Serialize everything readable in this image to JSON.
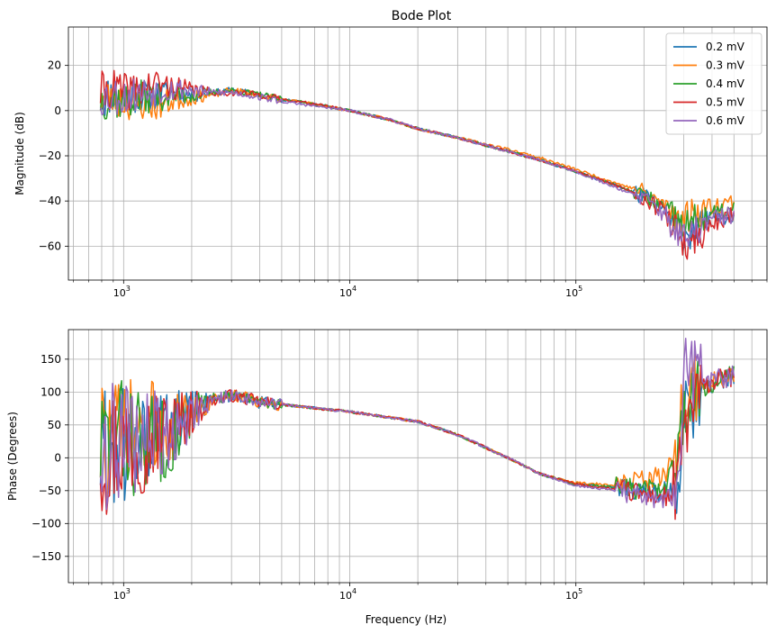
{
  "figure": {
    "title": "Bode Plot",
    "xlabel": "Frequency (Hz)"
  },
  "chart_data": [
    {
      "type": "line",
      "title": "Bode Plot",
      "ylabel": "Magnitude (dB)",
      "xscale": "log",
      "xlim": [
        570,
        700000
      ],
      "ylim": [
        -75,
        37
      ],
      "xticks": [
        1000,
        10000,
        100000
      ],
      "xtick_labels": [
        [
          "10",
          "3"
        ],
        [
          "10",
          "4"
        ],
        [
          "10",
          "5"
        ]
      ],
      "yticks": [
        -60,
        -40,
        -20,
        0,
        20
      ],
      "ytick_labels": [
        "−60",
        "−40",
        "−20",
        "0",
        "20"
      ],
      "grid": true,
      "legend": "top-right",
      "series": [
        {
          "name": "0.2 mV",
          "color": "#1f77b4",
          "seed": 11,
          "x": [
            800,
            900,
            1000,
            1200,
            1400,
            1700,
            2000,
            2500,
            3000,
            4000,
            5000,
            7000,
            10000,
            15000,
            20000,
            30000,
            50000,
            70000,
            100000,
            150000,
            200000,
            250000,
            300000,
            350000,
            400000,
            500000
          ],
          "y": [
            5,
            8,
            6,
            7,
            7,
            8,
            7,
            8,
            9,
            7,
            5,
            3,
            0,
            -4,
            -8,
            -12,
            -18,
            -22,
            -27,
            -33,
            -38,
            -45,
            -55,
            -52,
            -48,
            -45
          ]
        },
        {
          "name": "0.3 mV",
          "color": "#ff7f0e",
          "seed": 23,
          "x": [
            800,
            900,
            1000,
            1200,
            1400,
            1700,
            2000,
            2500,
            3000,
            4000,
            5000,
            7000,
            10000,
            15000,
            20000,
            30000,
            50000,
            70000,
            100000,
            150000,
            200000,
            250000,
            300000,
            350000,
            400000,
            500000
          ],
          "y": [
            5,
            6,
            4,
            3,
            2,
            5,
            6,
            7,
            9,
            7,
            5,
            3,
            0,
            -4,
            -8,
            -12,
            -17,
            -21,
            -26,
            -32,
            -36,
            -42,
            -48,
            -44,
            -42,
            -40
          ]
        },
        {
          "name": "0.4 mV",
          "color": "#2ca02c",
          "seed": 37,
          "x": [
            800,
            900,
            1000,
            1200,
            1400,
            1700,
            2000,
            2500,
            3000,
            4000,
            5000,
            7000,
            10000,
            15000,
            20000,
            30000,
            50000,
            70000,
            100000,
            150000,
            200000,
            250000,
            300000,
            350000,
            400000,
            500000
          ],
          "y": [
            5,
            5,
            4,
            6,
            6,
            7,
            7,
            8,
            9,
            7,
            5,
            3,
            0,
            -4,
            -8,
            -12,
            -18,
            -22,
            -27,
            -33,
            -38,
            -44,
            -52,
            -48,
            -46,
            -44
          ]
        },
        {
          "name": "0.5 mV",
          "color": "#d62728",
          "seed": 41,
          "x": [
            800,
            900,
            1000,
            1200,
            1400,
            1700,
            2000,
            2500,
            3000,
            4000,
            5000,
            7000,
            10000,
            15000,
            20000,
            30000,
            50000,
            70000,
            100000,
            150000,
            200000,
            250000,
            300000,
            350000,
            400000,
            500000
          ],
          "y": [
            8,
            10,
            8,
            10,
            12,
            10,
            9,
            8,
            8,
            7,
            5,
            3,
            0,
            -4,
            -8,
            -12,
            -18,
            -22,
            -27,
            -33,
            -38,
            -46,
            -60,
            -55,
            -50,
            -46
          ]
        },
        {
          "name": "0.6 mV",
          "color": "#9467bd",
          "seed": 53,
          "x": [
            800,
            900,
            1000,
            1200,
            1400,
            1700,
            2000,
            2500,
            3000,
            4000,
            5000,
            7000,
            10000,
            15000,
            20000,
            30000,
            50000,
            70000,
            100000,
            150000,
            200000,
            250000,
            300000,
            350000,
            400000,
            500000
          ],
          "y": [
            6,
            7,
            6,
            8,
            9,
            10,
            9,
            8,
            8,
            6,
            4,
            2,
            0,
            -4,
            -8,
            -12,
            -18,
            -22,
            -27,
            -34,
            -39,
            -46,
            -58,
            -52,
            -48,
            -46
          ]
        }
      ]
    },
    {
      "type": "line",
      "ylabel": "Phase (Degrees)",
      "xscale": "log",
      "xlim": [
        570,
        700000
      ],
      "ylim": [
        -190,
        195
      ],
      "xticks": [
        1000,
        10000,
        100000
      ],
      "xtick_labels": [
        [
          "10",
          "3"
        ],
        [
          "10",
          "4"
        ],
        [
          "10",
          "5"
        ]
      ],
      "yticks": [
        -150,
        -100,
        -50,
        0,
        50,
        100,
        150
      ],
      "ytick_labels": [
        "−150",
        "−100",
        "−50",
        "0",
        "50",
        "100",
        "150"
      ],
      "grid": true,
      "series": [
        {
          "name": "0.2 mV",
          "color": "#1f77b4",
          "seed": 61,
          "x": [
            800,
            1000,
            1300,
            1700,
            2000,
            2500,
            3000,
            4000,
            6000,
            10000,
            20000,
            30000,
            50000,
            70000,
            100000,
            150000,
            200000,
            250000,
            280000,
            300000,
            350000,
            400000,
            500000
          ],
          "y": [
            10,
            20,
            30,
            50,
            70,
            90,
            95,
            85,
            78,
            70,
            55,
            35,
            0,
            -25,
            -40,
            -45,
            -50,
            -50,
            -40,
            60,
            100,
            115,
            125
          ]
        },
        {
          "name": "0.3 mV",
          "color": "#ff7f0e",
          "seed": 73,
          "x": [
            800,
            1000,
            1300,
            1700,
            2000,
            2500,
            3000,
            4000,
            6000,
            10000,
            20000,
            30000,
            50000,
            70000,
            100000,
            150000,
            200000,
            250000,
            280000,
            300000,
            350000,
            400000,
            500000
          ],
          "y": [
            20,
            30,
            40,
            50,
            70,
            88,
            95,
            85,
            78,
            70,
            55,
            35,
            0,
            -25,
            -38,
            -42,
            -35,
            -25,
            20,
            90,
            110,
            118,
            125
          ]
        },
        {
          "name": "0.4 mV",
          "color": "#2ca02c",
          "seed": 83,
          "x": [
            800,
            1000,
            1300,
            1700,
            2000,
            2500,
            3000,
            4000,
            6000,
            10000,
            20000,
            30000,
            50000,
            70000,
            100000,
            150000,
            200000,
            250000,
            280000,
            300000,
            350000,
            400000,
            500000
          ],
          "y": [
            20,
            30,
            20,
            40,
            70,
            90,
            95,
            85,
            78,
            70,
            55,
            35,
            0,
            -25,
            -40,
            -45,
            -48,
            -45,
            0,
            80,
            105,
            115,
            125
          ]
        },
        {
          "name": "0.5 mV",
          "color": "#d62728",
          "seed": 97,
          "x": [
            800,
            1000,
            1300,
            1700,
            2000,
            2500,
            3000,
            4000,
            6000,
            10000,
            20000,
            30000,
            50000,
            70000,
            100000,
            150000,
            200000,
            250000,
            280000,
            300000,
            350000,
            400000,
            500000
          ],
          "y": [
            10,
            20,
            30,
            50,
            70,
            88,
            95,
            85,
            78,
            70,
            55,
            35,
            0,
            -25,
            -40,
            -48,
            -55,
            -60,
            -55,
            40,
            100,
            115,
            125
          ]
        },
        {
          "name": "0.6 mV",
          "color": "#9467bd",
          "seed": 109,
          "x": [
            800,
            1000,
            1300,
            1700,
            2000,
            2500,
            3000,
            4000,
            6000,
            10000,
            20000,
            30000,
            50000,
            70000,
            100000,
            150000,
            200000,
            250000,
            280000,
            300000,
            350000,
            400000,
            500000
          ],
          "y": [
            20,
            20,
            30,
            40,
            70,
            88,
            95,
            85,
            78,
            70,
            55,
            35,
            0,
            -25,
            -42,
            -50,
            -58,
            -62,
            -70,
            130,
            120,
            118,
            125
          ]
        }
      ]
    }
  ]
}
